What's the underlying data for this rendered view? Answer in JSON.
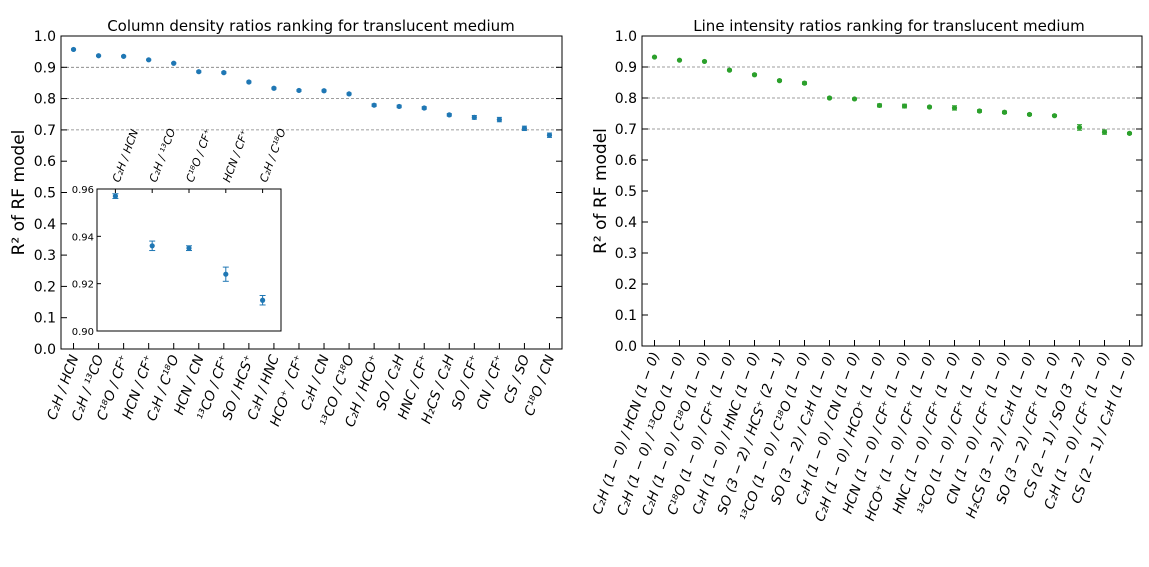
{
  "chart_data": [
    {
      "type": "scatter",
      "title": "Column density ratios ranking for translucent medium",
      "ylabel": "R² of RF model",
      "xlabel": "",
      "ylim": [
        0.0,
        1.0
      ],
      "yticks": [
        "0.0",
        "0.1",
        "0.2",
        "0.3",
        "0.4",
        "0.5",
        "0.6",
        "0.7",
        "0.8",
        "0.9",
        "1.0"
      ],
      "reference_lines": [
        0.7,
        0.8,
        0.9
      ],
      "color": "#1f77b4",
      "categories": [
        "C₂H / HCN",
        "C₂H / ¹³CO",
        "C¹⁸O / CF⁺",
        "HCN / CF⁺",
        "C₂H / C¹⁸O",
        "HCN / CN",
        "¹³CO / CF⁺",
        "SO / HCS⁺",
        "C₂H / HNC",
        "HCO⁺ / CF⁺",
        "C₂H / CN",
        "¹³CO / C¹⁸O",
        "C₂H / HCO⁺",
        "SO / C₂H",
        "HNC / CF⁺",
        "H₂CS / C₂H",
        "SO / CF⁺",
        "CN / CF⁺",
        "CS / SO",
        "C¹⁸O / CN"
      ],
      "values": [
        0.957,
        0.937,
        0.935,
        0.924,
        0.913,
        0.886,
        0.883,
        0.853,
        0.833,
        0.826,
        0.825,
        0.815,
        0.779,
        0.775,
        0.77,
        0.748,
        0.74,
        0.733,
        0.705,
        0.683
      ],
      "errors": [
        0.002,
        0.002,
        0.002,
        0.002,
        0.002,
        0.003,
        0.003,
        0.003,
        0.003,
        0.003,
        0.003,
        0.003,
        0.004,
        0.004,
        0.004,
        0.004,
        0.006,
        0.007,
        0.007,
        0.007
      ],
      "inset": {
        "ylim": [
          0.9,
          0.96
        ],
        "yticks": [
          "0.90",
          "0.92",
          "0.94",
          "0.96"
        ],
        "labels": [
          "C₂H / HCN",
          "C₂H / ¹³CO",
          "C¹⁸O / CF⁺",
          "HCN / CF⁺",
          "C₂H / C¹⁸O"
        ],
        "values": [
          0.957,
          0.936,
          0.935,
          0.924,
          0.913
        ],
        "errors": [
          0.001,
          0.002,
          0.001,
          0.003,
          0.002
        ]
      }
    },
    {
      "type": "scatter",
      "title": "Line intensity ratios ranking for translucent medium",
      "ylabel": "R² of RF model",
      "xlabel": "",
      "ylim": [
        0.0,
        1.0
      ],
      "yticks": [
        "0.0",
        "0.1",
        "0.2",
        "0.3",
        "0.4",
        "0.5",
        "0.6",
        "0.7",
        "0.8",
        "0.9",
        "1.0"
      ],
      "reference_lines": [
        0.7,
        0.8,
        0.9
      ],
      "color": "#2ca02c",
      "categories": [
        "C₂H (1 − 0) / HCN (1 − 0)",
        "C₂H (1 − 0) / ¹³CO (1 − 0)",
        "C₂H (1 − 0) / C¹⁸O (1 − 0)",
        "C¹⁸O (1 − 0) / CF⁺ (1 − 0)",
        "C₂H (1 − 0) / HNC (1 − 0)",
        "SO (3 − 2) / HCS⁺ (2 − 1)",
        "¹³CO (1 − 0) / C¹⁸O (1 − 0)",
        "SO (3 − 2) / C₂H (1 − 0)",
        "C₂H (1 − 0) / CN (1 − 0)",
        "C₂H (1 − 0) / HCO⁺ (1 − 0)",
        "HCN (1 − 0) / CF⁺ (1 − 0)",
        "HCO⁺ (1 − 0) / CF⁺ (1 − 0)",
        "HNC (1 − 0) / CF⁺ (1 − 0)",
        "¹³CO (1 − 0) / CF⁺ (1 − 0)",
        "CN (1 − 0) / CF⁺ (1 − 0)",
        "H₂CS (3 − 2) / C₂H (1 − 0)",
        "SO (3 − 2) / CF⁺ (1 − 0)",
        "CS (2 − 1) / SO (3 − 2)",
        "C₂H (1 − 0) / CF⁺ (1 − 0)",
        "CS (2 − 1) / C₂H (1 − 0)"
      ],
      "values": [
        0.932,
        0.922,
        0.918,
        0.89,
        0.875,
        0.856,
        0.848,
        0.8,
        0.797,
        0.776,
        0.774,
        0.771,
        0.768,
        0.758,
        0.754,
        0.747,
        0.743,
        0.705,
        0.69,
        0.686
      ],
      "errors": [
        0.002,
        0.002,
        0.002,
        0.003,
        0.003,
        0.003,
        0.004,
        0.003,
        0.003,
        0.005,
        0.006,
        0.003,
        0.007,
        0.004,
        0.004,
        0.003,
        0.003,
        0.009,
        0.007,
        0.003
      ]
    }
  ]
}
